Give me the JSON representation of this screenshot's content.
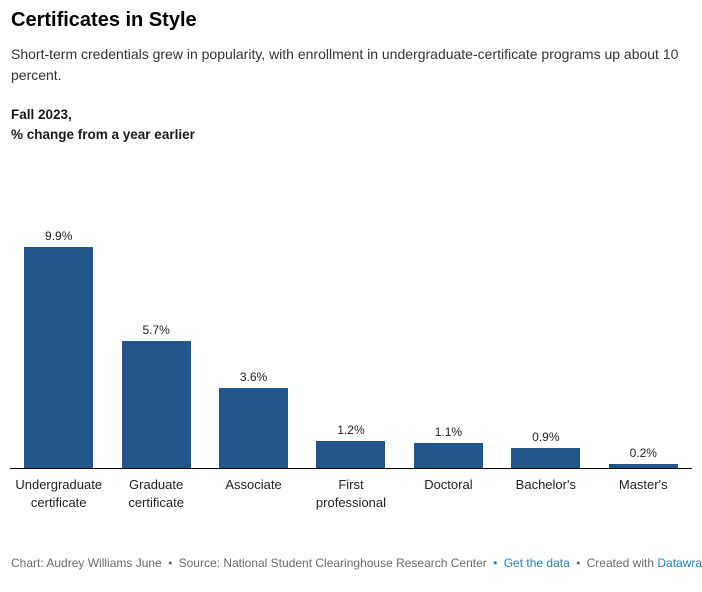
{
  "header": {
    "title": "Certificates in Style",
    "description": "Short-term credentials grew in popularity, with enrollment in undergraduate-certificate programs up about 10 percent.",
    "notes_line1": "Fall 2023,",
    "notes_line2": "% change from a year earlier"
  },
  "chart_data": {
    "type": "bar",
    "categories": [
      "Undergraduate certificate",
      "Graduate certificate",
      "Associate",
      "First professional",
      "Doctoral",
      "Bachelor's",
      "Master's"
    ],
    "values": [
      9.9,
      5.7,
      3.6,
      1.2,
      1.1,
      0.9,
      0.2
    ],
    "value_labels": [
      "9.9%",
      "5.7%",
      "3.6%",
      "1.2%",
      "1.1%",
      "0.9%",
      "0.2%"
    ],
    "title": "Certificates in Style",
    "xlabel": "",
    "ylabel": "% change from a year earlier",
    "ylim": [
      0,
      9.9
    ],
    "grid": false,
    "legend_position": "none",
    "bar_color": "#22558C",
    "axis_line_color": "#000000"
  },
  "colors": {
    "bar": "#22558C",
    "link": "#1d81c6",
    "footer_text": "#6b6b6b"
  },
  "footer": {
    "chart_credit": "Chart: Audrey Williams June",
    "source": "Source: National Student Clearinghouse Research Center",
    "get_data_label": "Get the data",
    "created_with": "Created with",
    "datawrapper_label": "Datawrapper",
    "separator": "•"
  }
}
